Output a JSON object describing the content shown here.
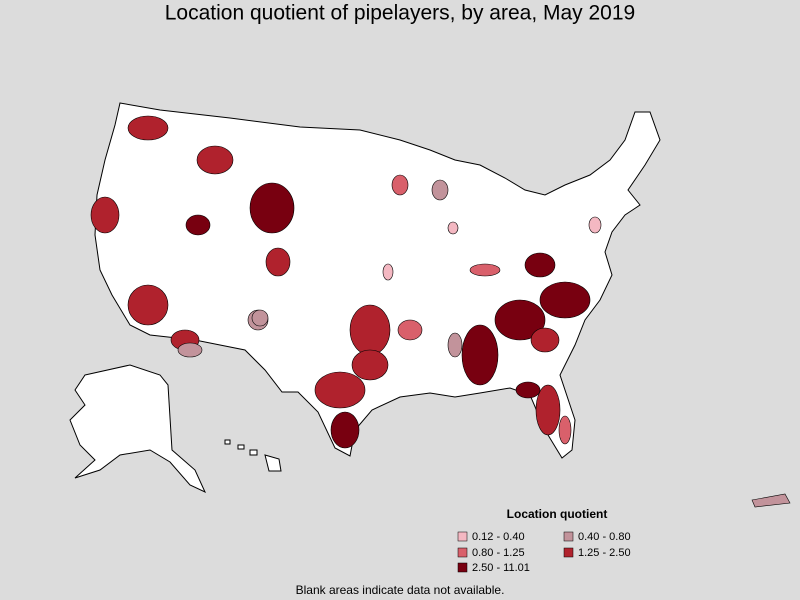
{
  "title": "Location quotient of pipelayers, by area, May 2019",
  "legend": {
    "title": "Location quotient",
    "items": [
      {
        "label": "0.12 - 0.40",
        "color": "#f4b8c2"
      },
      {
        "label": "0.40 - 0.80",
        "color": "#c2939b"
      },
      {
        "label": "0.80 - 1.25",
        "color": "#d9606b"
      },
      {
        "label": "1.25 - 2.50",
        "color": "#b0222d"
      },
      {
        "label": "2.50 - 11.01",
        "color": "#780010"
      }
    ]
  },
  "footnote": "Blank areas indicate data not available."
}
